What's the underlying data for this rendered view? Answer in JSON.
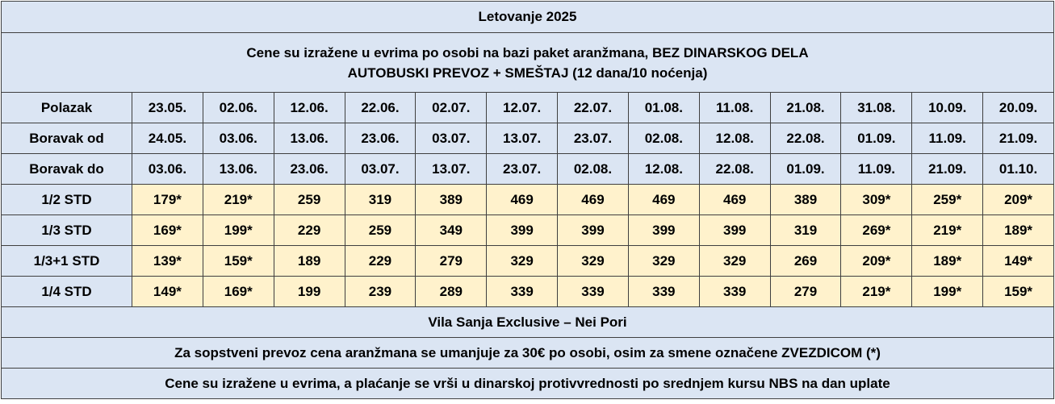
{
  "title": "Letovanje 2025",
  "info": {
    "line1": "Cene su izražene u evrima po osobi na bazi paket aranžmana, BEZ DINARSKOG DELA",
    "line2": "AUTOBUSKI PREVOZ + SMEŠTAJ (12 dana/10 noćenja)"
  },
  "schedule_rows": [
    {
      "label": "Polazak",
      "values": [
        "23.05.",
        "02.06.",
        "12.06.",
        "22.06.",
        "02.07.",
        "12.07.",
        "22.07.",
        "01.08.",
        "11.08.",
        "21.08.",
        "31.08.",
        "10.09.",
        "20.09."
      ]
    },
    {
      "label": "Boravak od",
      "values": [
        "24.05.",
        "03.06.",
        "13.06.",
        "23.06.",
        "03.07.",
        "13.07.",
        "23.07.",
        "02.08.",
        "12.08.",
        "22.08.",
        "01.09.",
        "11.09.",
        "21.09."
      ]
    },
    {
      "label": "Boravak do",
      "values": [
        "03.06.",
        "13.06.",
        "23.06.",
        "03.07.",
        "13.07.",
        "23.07.",
        "02.08.",
        "12.08.",
        "22.08.",
        "01.09.",
        "11.09.",
        "21.09.",
        "01.10."
      ]
    }
  ],
  "price_rows": [
    {
      "label": "1/2 STD",
      "values": [
        "179*",
        "219*",
        "259",
        "319",
        "389",
        "469",
        "469",
        "469",
        "469",
        "389",
        "309*",
        "259*",
        "209*"
      ]
    },
    {
      "label": "1/3 STD",
      "values": [
        "169*",
        "199*",
        "229",
        "259",
        "349",
        "399",
        "399",
        "399",
        "399",
        "319",
        "269*",
        "219*",
        "189*"
      ]
    },
    {
      "label": "1/3+1 STD",
      "values": [
        "139*",
        "159*",
        "189",
        "229",
        "279",
        "329",
        "329",
        "329",
        "329",
        "269",
        "209*",
        "189*",
        "149*"
      ]
    },
    {
      "label": "1/4 STD",
      "values": [
        "149*",
        "169*",
        "199",
        "239",
        "289",
        "339",
        "339",
        "339",
        "339",
        "279",
        "219*",
        "199*",
        "159*"
      ]
    }
  ],
  "footer": {
    "property": "Vila Sanja Exclusive – Nei Pori",
    "note1": "Za sopstveni prevoz cena aranžmana se umanjuje za 30€ po osobi, osim za smene označene ZVEZDICOM (*)",
    "note2": "Cene su izražene u evrima, a plaćanje se vrši u dinarskoj protivvrednosti po srednjem kursu NBS na dan uplate"
  },
  "colors": {
    "header_background": "#dbe5f3",
    "price_background": "#fff2cc",
    "border": "#3f3f3f"
  }
}
